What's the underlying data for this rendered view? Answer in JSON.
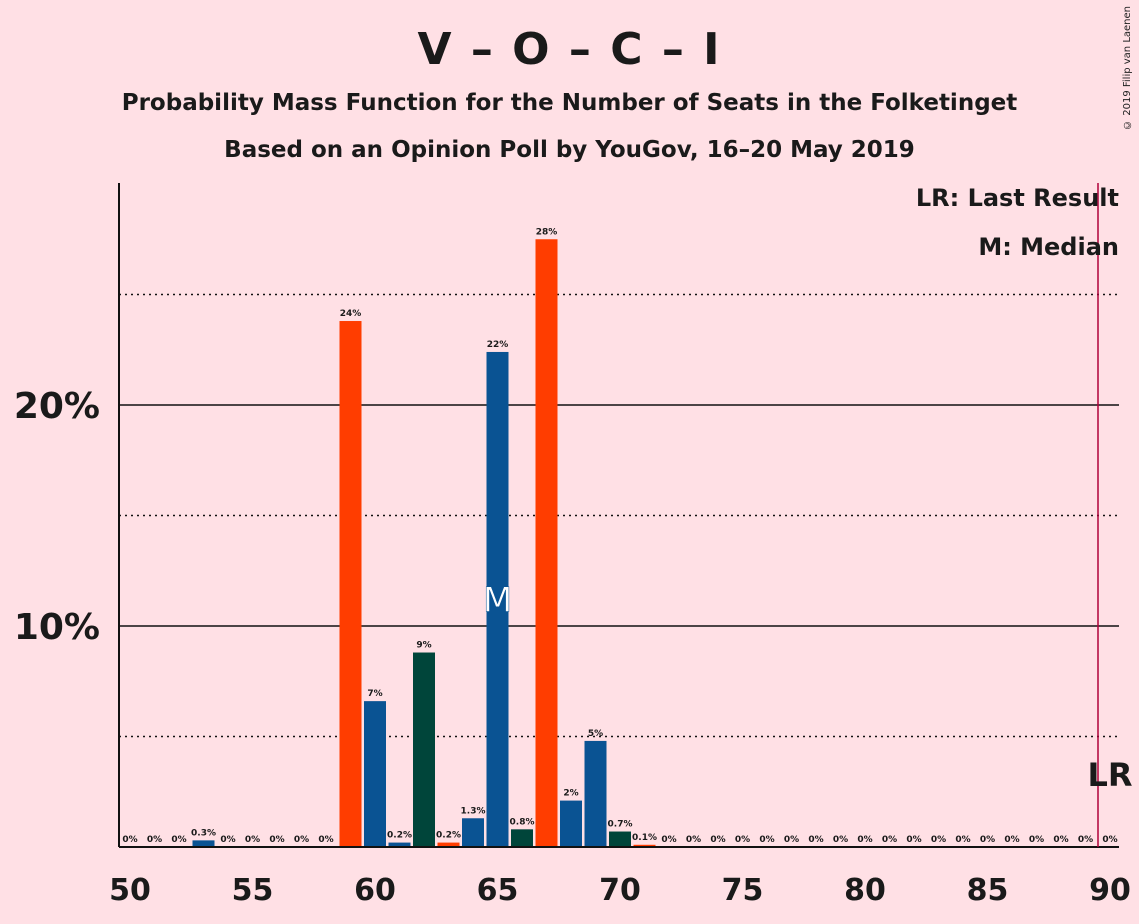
{
  "title": "V – O – C – I",
  "subtitle1": "Probability Mass Function for the Number of Seats in the Folketinget",
  "subtitle2": "Based on an Opinion Poll by YouGov, 16–20 May 2019",
  "copyright": "© 2019 Filip van Laenen",
  "legend": {
    "lr": "LR: Last Result",
    "median": "M: Median"
  },
  "markers": {
    "median_symbol": "M",
    "lr_symbol": "LR"
  },
  "colors": {
    "background": "#ffe0e5",
    "blue": "#0a5393",
    "orange": "#ff3d00",
    "green": "#00453a",
    "lr_line": "#b0003a"
  },
  "chart_data": {
    "type": "bar",
    "xlim": [
      50,
      90
    ],
    "ylim": [
      0,
      30
    ],
    "x_ticks": [
      50,
      55,
      60,
      65,
      70,
      75,
      80,
      85,
      90
    ],
    "y_ticks": [
      {
        "value": 10,
        "label": "10%"
      },
      {
        "value": 20,
        "label": "20%"
      }
    ],
    "median_seat": 65,
    "last_result_seat": 90,
    "bars": [
      {
        "seat": 50,
        "value": 0,
        "label": "0%",
        "color": "blue"
      },
      {
        "seat": 51,
        "value": 0,
        "label": "0%",
        "color": "blue"
      },
      {
        "seat": 52,
        "value": 0,
        "label": "0%",
        "color": "blue"
      },
      {
        "seat": 53,
        "value": 0.3,
        "label": "0.3%",
        "color": "blue"
      },
      {
        "seat": 54,
        "value": 0,
        "label": "0%",
        "color": "blue"
      },
      {
        "seat": 55,
        "value": 0,
        "label": "0%",
        "color": "blue"
      },
      {
        "seat": 56,
        "value": 0,
        "label": "0%",
        "color": "blue"
      },
      {
        "seat": 57,
        "value": 0,
        "label": "0%",
        "color": "blue"
      },
      {
        "seat": 58,
        "value": 0,
        "label": "0%",
        "color": "blue"
      },
      {
        "seat": 59,
        "value": 23.8,
        "label": "24%",
        "color": "orange"
      },
      {
        "seat": 60,
        "value": 6.6,
        "label": "7%",
        "color": "blue"
      },
      {
        "seat": 61,
        "value": 0.2,
        "label": "0.2%",
        "color": "blue"
      },
      {
        "seat": 62,
        "value": 8.8,
        "label": "9%",
        "color": "green"
      },
      {
        "seat": 63,
        "value": 0.2,
        "label": "0.2%",
        "color": "orange"
      },
      {
        "seat": 64,
        "value": 1.3,
        "label": "1.3%",
        "color": "blue"
      },
      {
        "seat": 65,
        "value": 22.4,
        "label": "22%",
        "color": "blue"
      },
      {
        "seat": 66,
        "value": 0.8,
        "label": "0.8%",
        "color": "green"
      },
      {
        "seat": 67,
        "value": 27.5,
        "label": "28%",
        "color": "orange"
      },
      {
        "seat": 68,
        "value": 2.1,
        "label": "2%",
        "color": "blue"
      },
      {
        "seat": 69,
        "value": 4.8,
        "label": "5%",
        "color": "blue"
      },
      {
        "seat": 70,
        "value": 0.7,
        "label": "0.7%",
        "color": "green"
      },
      {
        "seat": 71,
        "value": 0.1,
        "label": "0.1%",
        "color": "orange"
      },
      {
        "seat": 72,
        "value": 0,
        "label": "0%",
        "color": "blue"
      },
      {
        "seat": 73,
        "value": 0,
        "label": "0%",
        "color": "blue"
      },
      {
        "seat": 74,
        "value": 0,
        "label": "0%",
        "color": "blue"
      },
      {
        "seat": 75,
        "value": 0,
        "label": "0%",
        "color": "blue"
      },
      {
        "seat": 76,
        "value": 0,
        "label": "0%",
        "color": "blue"
      },
      {
        "seat": 77,
        "value": 0,
        "label": "0%",
        "color": "blue"
      },
      {
        "seat": 78,
        "value": 0,
        "label": "0%",
        "color": "blue"
      },
      {
        "seat": 79,
        "value": 0,
        "label": "0%",
        "color": "blue"
      },
      {
        "seat": 80,
        "value": 0,
        "label": "0%",
        "color": "blue"
      },
      {
        "seat": 81,
        "value": 0,
        "label": "0%",
        "color": "blue"
      },
      {
        "seat": 82,
        "value": 0,
        "label": "0%",
        "color": "blue"
      },
      {
        "seat": 83,
        "value": 0,
        "label": "0%",
        "color": "blue"
      },
      {
        "seat": 84,
        "value": 0,
        "label": "0%",
        "color": "blue"
      },
      {
        "seat": 85,
        "value": 0,
        "label": "0%",
        "color": "blue"
      },
      {
        "seat": 86,
        "value": 0,
        "label": "0%",
        "color": "blue"
      },
      {
        "seat": 87,
        "value": 0,
        "label": "0%",
        "color": "blue"
      },
      {
        "seat": 88,
        "value": 0,
        "label": "0%",
        "color": "blue"
      },
      {
        "seat": 89,
        "value": 0,
        "label": "0%",
        "color": "blue"
      },
      {
        "seat": 90,
        "value": 0,
        "label": "0%",
        "color": "blue"
      }
    ]
  }
}
